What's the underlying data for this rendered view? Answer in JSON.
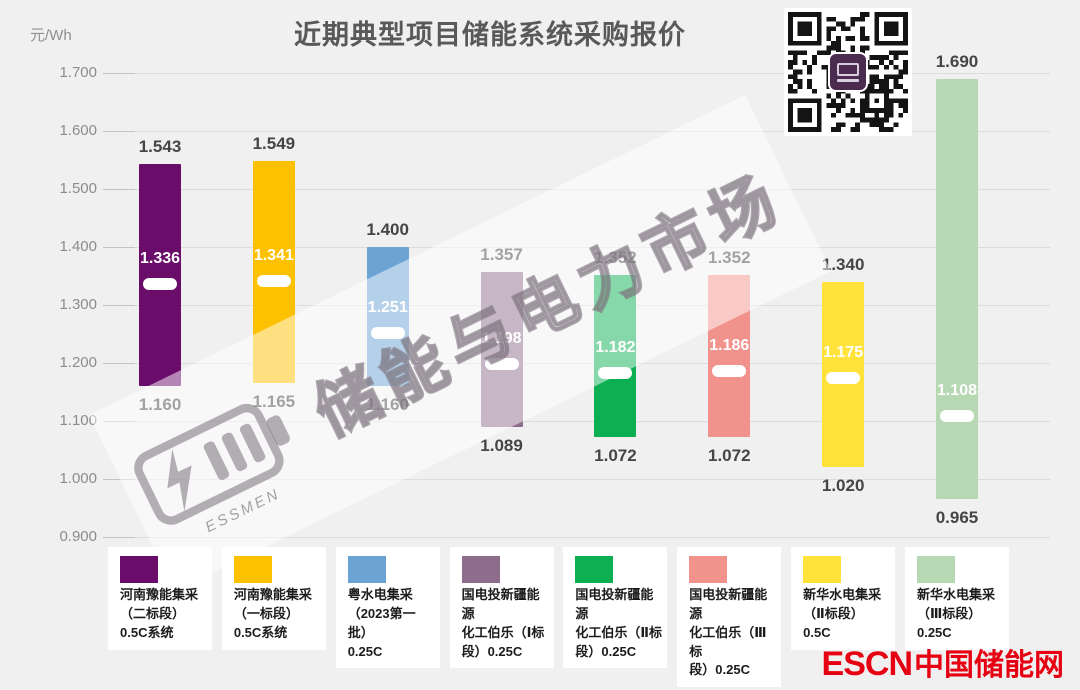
{
  "title": "近期典型项目储能系统采购报价",
  "unit_label": "元/Wh",
  "watermark": {
    "brand_text": "储能与电力市场",
    "sub_text": "ESSMEN"
  },
  "footer": {
    "wordmark": "ESCN",
    "site_name": "中国储能网",
    "color": "#e60012"
  },
  "chart_data": {
    "type": "bar",
    "subtype": "floating-range-bar",
    "title": "近期典型项目储能系统采购报价",
    "xlabel": "",
    "ylabel": "元/Wh",
    "value_unit": "元/Wh",
    "ylim": [
      0.9,
      1.7
    ],
    "ytick_labels": [
      "1.700",
      "1.600",
      "1.500",
      "1.400",
      "1.300",
      "1.200",
      "1.100",
      "1.000",
      "0.900"
    ],
    "ytick_values": [
      1.7,
      1.6,
      1.5,
      1.4,
      1.3,
      1.2,
      1.1,
      1.0,
      0.9
    ],
    "grid": true,
    "legend_position": "bottom",
    "series": [
      {
        "name": "河南豫能集采（二标段）0.5C系统",
        "legend_lines": [
          "河南豫能集采",
          "（二标段）",
          "0.5C系统"
        ],
        "color": "#6a0d6a",
        "max": 1.543,
        "avg": 1.336,
        "min": 1.16,
        "max_label": "1.543",
        "avg_label": "1.336",
        "min_label": "1.160"
      },
      {
        "name": "河南豫能集采（一标段）0.5C系统",
        "legend_lines": [
          "河南豫能集采",
          "（一标段）",
          "0.5C系统"
        ],
        "color": "#fec101",
        "max": 1.549,
        "avg": 1.341,
        "min": 1.165,
        "max_label": "1.549",
        "avg_label": "1.341",
        "min_label": "1.165"
      },
      {
        "name": "粤水电集采（2023第一批）0.25C",
        "legend_lines": [
          "粤水电集采",
          "（2023第一批）",
          "0.25C"
        ],
        "color": "#6ba3d4",
        "max": 1.4,
        "avg": 1.251,
        "min": 1.16,
        "max_label": "1.400",
        "avg_label": "1.251",
        "min_label": "1.160"
      },
      {
        "name": "国电投新疆能源化工伯乐（Ⅰ标段）0.25C",
        "legend_lines": [
          "国电投新疆能源",
          "化工伯乐（Ⅰ标",
          "段）0.25C"
        ],
        "color": "#8e6c8c",
        "max": 1.357,
        "avg": 1.198,
        "min": 1.089,
        "max_label": "1.357",
        "avg_label": "1.198",
        "min_label": "1.089"
      },
      {
        "name": "国电投新疆能源化工伯乐（Ⅱ标段）0.25C",
        "legend_lines": [
          "国电投新疆能源",
          "化工伯乐（Ⅱ标",
          "段）0.25C"
        ],
        "color": "#0caf52",
        "max": 1.352,
        "avg": 1.182,
        "min": 1.072,
        "max_label": "1.352",
        "avg_label": "1.182",
        "min_label": "1.072"
      },
      {
        "name": "国电投新疆能源化工伯乐（Ⅲ标段）0.25C",
        "legend_lines": [
          "国电投新疆能源",
          "化工伯乐（Ⅲ标",
          "段）0.25C"
        ],
        "color": "#f2928c",
        "max": 1.352,
        "avg": 1.186,
        "min": 1.072,
        "max_label": "1.352",
        "avg_label": "1.186",
        "min_label": "1.072"
      },
      {
        "name": "新华水电集采（Ⅱ标段）0.5C",
        "legend_lines": [
          "新华水电集采",
          "（Ⅱ标段）0.5C"
        ],
        "color": "#ffe23a",
        "max": 1.34,
        "avg": 1.175,
        "min": 1.02,
        "max_label": "1.340",
        "avg_label": "1.175",
        "min_label": "1.020"
      },
      {
        "name": "新华水电集采（Ⅲ标段）0.25C",
        "legend_lines": [
          "新华水电集采",
          "（Ⅲ标段）",
          "0.25C"
        ],
        "color": "#b6d8b3",
        "max": 1.69,
        "avg": 1.108,
        "min": 0.965,
        "max_label": "1.690",
        "avg_label": "1.108",
        "min_label": "0.965"
      }
    ]
  }
}
